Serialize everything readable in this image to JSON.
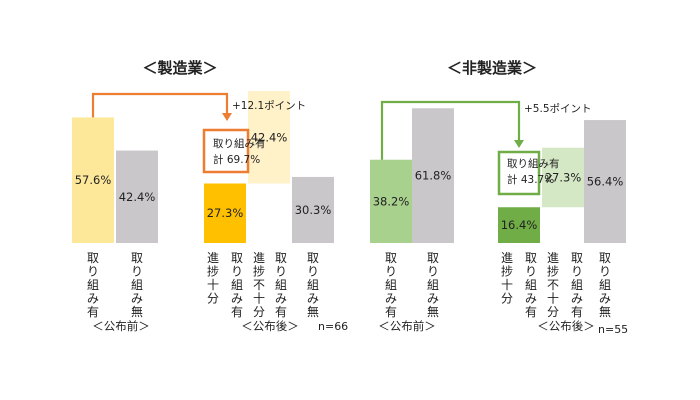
{
  "colors": {
    "mfg_before": "#fde89a",
    "mfg_sufficient": "#ffc000",
    "mfg_insufficient": "#fff1c8",
    "none": "#c9c7c9",
    "mfg_accent": "#ed7d31",
    "nonmfg_before": "#a9d18e",
    "nonmfg_sufficient": "#70ad47",
    "nonmfg_insufficient": "#d5e8c6",
    "nonmfg_accent": "#70ad47"
  },
  "chart_data": [
    {
      "type": "bar",
      "title": "＜製造業＞",
      "ylim": [
        0,
        100
      ],
      "bars": [
        {
          "label": "取り組み有",
          "value": 57.6,
          "display": "57.6%",
          "color_key": "mfg_before"
        },
        {
          "label": "取り組み無",
          "value": 42.4,
          "display": "42.4%",
          "color_key": "none"
        },
        {
          "label": "進捗十分",
          "value": 27.3,
          "display": "27.3%",
          "color_key": "mfg_sufficient"
        },
        {
          "label": "取り組み有",
          "value": 42.4,
          "display": "42.4%",
          "color_key": "mfg_insufficient"
        },
        {
          "label": "進捗不十分",
          "value": null,
          "display": "",
          "color_key": null
        },
        {
          "label": "取り組み有",
          "value": null,
          "display": "",
          "color_key": null
        },
        {
          "label": "取り組み無",
          "value": 30.3,
          "display": "30.3%",
          "color_key": "none"
        }
      ],
      "groups": [
        "＜公布前＞",
        "＜公布後＞"
      ],
      "arrow_label": "+12.1ポイント",
      "callout": {
        "line1": "取り組み有",
        "line2": "計 69.7%"
      },
      "n": "n=66"
    },
    {
      "type": "bar",
      "title": "＜非製造業＞",
      "ylim": [
        0,
        100
      ],
      "bars": [
        {
          "label": "取り組み有",
          "value": 38.2,
          "display": "38.2%",
          "color_key": "nonmfg_before"
        },
        {
          "label": "取り組み無",
          "value": 61.8,
          "display": "61.8%",
          "color_key": "none"
        },
        {
          "label": "進捗十分",
          "value": 16.4,
          "display": "16.4%",
          "color_key": "nonmfg_sufficient"
        },
        {
          "label": "進捗不十分",
          "value": 27.3,
          "display": "27.3%",
          "color_key": "nonmfg_insufficient"
        },
        {
          "label": "取り組み有",
          "value": null,
          "display": "",
          "color_key": null
        },
        {
          "label": "取り組み無",
          "value": 56.4,
          "display": "56.4%",
          "color_key": "none"
        }
      ],
      "groups": [
        "＜公布前＞",
        "＜公布後＞"
      ],
      "arrow_label": "+5.5ポイント",
      "callout": {
        "line1": "取り組み有",
        "line2": "計 43.7%"
      },
      "n": "n=55"
    }
  ]
}
